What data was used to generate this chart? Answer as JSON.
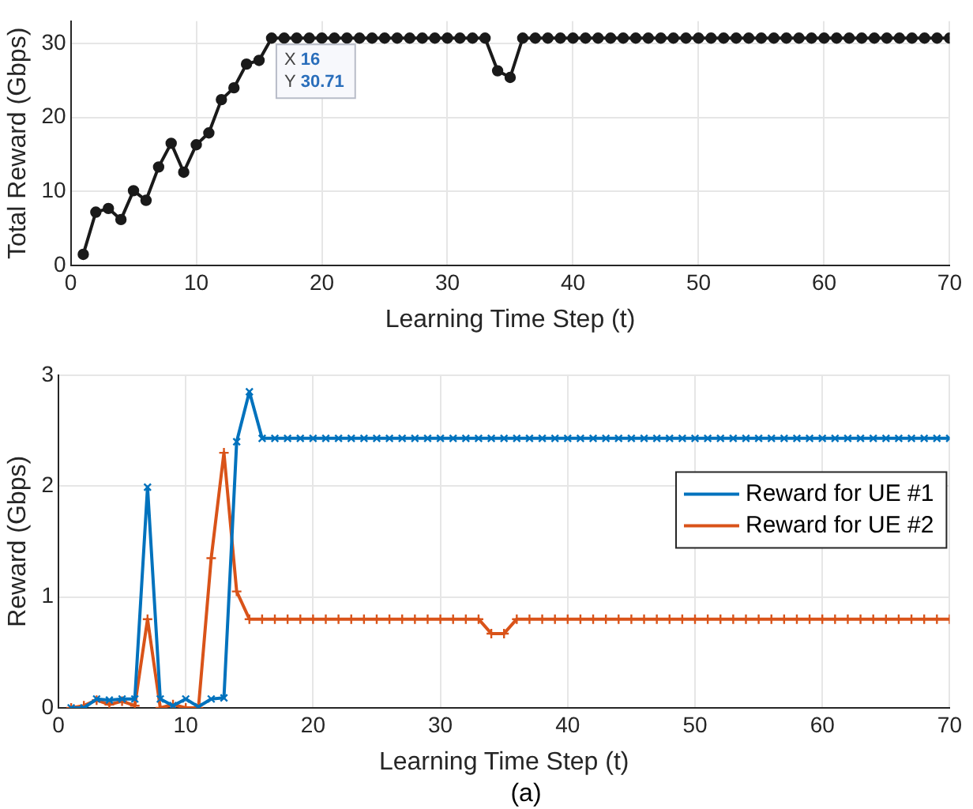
{
  "chart_data": [
    {
      "type": "line",
      "xlabel": "Learning Time Step (t)",
      "ylabel": "Total Reward (Gbps)",
      "xlim": [
        0,
        70
      ],
      "xticks": [
        0,
        10,
        20,
        30,
        40,
        50,
        60,
        70
      ],
      "ylim": [
        0,
        33
      ],
      "yticks": [
        0,
        10,
        20,
        30
      ],
      "grid": true,
      "marker": "circle",
      "legend": false,
      "x": [
        1,
        2,
        3,
        4,
        5,
        6,
        7,
        8,
        9,
        10,
        11,
        12,
        13,
        14,
        15,
        16,
        17,
        18,
        19,
        20,
        21,
        22,
        23,
        24,
        25,
        26,
        27,
        28,
        29,
        30,
        31,
        32,
        33,
        34,
        35,
        36,
        37,
        38,
        39,
        40,
        41,
        42,
        43,
        44,
        45,
        46,
        47,
        48,
        49,
        50,
        51,
        52,
        53,
        54,
        55,
        56,
        57,
        58,
        59,
        60,
        61,
        62,
        63,
        64,
        65,
        66,
        67,
        68,
        69,
        70
      ],
      "series": [
        {
          "color": "#1a1a1a",
          "values": [
            1.5,
            7.2,
            7.7,
            6.2,
            10.1,
            8.8,
            13.3,
            16.5,
            12.6,
            16.3,
            17.9,
            22.4,
            24,
            27.2,
            27.7,
            30.71,
            30.71,
            30.71,
            30.71,
            30.71,
            30.71,
            30.71,
            30.71,
            30.71,
            30.71,
            30.71,
            30.71,
            30.71,
            30.71,
            30.71,
            30.71,
            30.71,
            30.71,
            26.3,
            25.4,
            30.71,
            30.71,
            30.71,
            30.71,
            30.71,
            30.71,
            30.71,
            30.71,
            30.71,
            30.71,
            30.71,
            30.71,
            30.71,
            30.71,
            30.71,
            30.71,
            30.71,
            30.71,
            30.71,
            30.71,
            30.71,
            30.71,
            30.71,
            30.71,
            30.71,
            30.71,
            30.71,
            30.71,
            30.71,
            30.71,
            30.71,
            30.71,
            30.71,
            30.71,
            30.71
          ]
        }
      ],
      "annotations": [
        {
          "text": "X 16\nY 30.71",
          "x": 16,
          "y": 30.71
        }
      ]
    },
    {
      "type": "line",
      "xlabel": "Learning Time Step (t)",
      "ylabel": "Reward (Gbps)",
      "xlim": [
        0,
        70
      ],
      "xticks": [
        0,
        10,
        20,
        30,
        40,
        50,
        60,
        70
      ],
      "ylim": [
        0,
        3
      ],
      "yticks": [
        0,
        1,
        2,
        3
      ],
      "grid": true,
      "legend": "right",
      "marker": "cross",
      "x": [
        1,
        2,
        3,
        4,
        5,
        6,
        7,
        8,
        9,
        10,
        11,
        12,
        13,
        14,
        15,
        16,
        17,
        18,
        19,
        20,
        21,
        22,
        23,
        24,
        25,
        26,
        27,
        28,
        29,
        30,
        31,
        32,
        33,
        34,
        35,
        36,
        37,
        38,
        39,
        40,
        41,
        42,
        43,
        44,
        45,
        46,
        47,
        48,
        49,
        50,
        51,
        52,
        53,
        54,
        55,
        56,
        57,
        58,
        59,
        60,
        61,
        62,
        63,
        64,
        65,
        66,
        67,
        68,
        69,
        70
      ],
      "series": [
        {
          "name": "Reward for UE #1",
          "color": "#0072bd",
          "values": [
            0,
            0,
            0.08,
            0.07,
            0.08,
            0.08,
            1.99,
            0.08,
            0.02,
            0.08,
            0.01,
            0.08,
            0.09,
            2.4,
            2.85,
            2.43,
            2.43,
            2.43,
            2.43,
            2.43,
            2.43,
            2.43,
            2.43,
            2.43,
            2.43,
            2.43,
            2.43,
            2.43,
            2.43,
            2.43,
            2.43,
            2.43,
            2.43,
            2.43,
            2.43,
            2.43,
            2.43,
            2.43,
            2.43,
            2.43,
            2.43,
            2.43,
            2.43,
            2.43,
            2.43,
            2.43,
            2.43,
            2.43,
            2.43,
            2.43,
            2.43,
            2.43,
            2.43,
            2.43,
            2.43,
            2.43,
            2.43,
            2.43,
            2.43,
            2.43,
            2.43,
            2.43,
            2.43,
            2.43,
            2.43,
            2.43,
            2.43,
            2.43,
            2.43,
            2.43
          ]
        },
        {
          "name": "Reward for UE #2",
          "color": "#d95319",
          "values": [
            0,
            0.02,
            0.07,
            0.03,
            0.06,
            0.02,
            0.8,
            0,
            0.03,
            0,
            0,
            1.35,
            2.3,
            1.05,
            0.8,
            0.8,
            0.8,
            0.8,
            0.8,
            0.8,
            0.8,
            0.8,
            0.8,
            0.8,
            0.8,
            0.8,
            0.8,
            0.8,
            0.8,
            0.8,
            0.8,
            0.8,
            0.8,
            0.67,
            0.67,
            0.8,
            0.8,
            0.8,
            0.8,
            0.8,
            0.8,
            0.8,
            0.8,
            0.8,
            0.8,
            0.8,
            0.8,
            0.8,
            0.8,
            0.8,
            0.8,
            0.8,
            0.8,
            0.8,
            0.8,
            0.8,
            0.8,
            0.8,
            0.8,
            0.8,
            0.8,
            0.8,
            0.8,
            0.8,
            0.8,
            0.8,
            0.8,
            0.8,
            0.8,
            0.8
          ]
        }
      ],
      "annotations": [
        "(a)"
      ]
    }
  ]
}
